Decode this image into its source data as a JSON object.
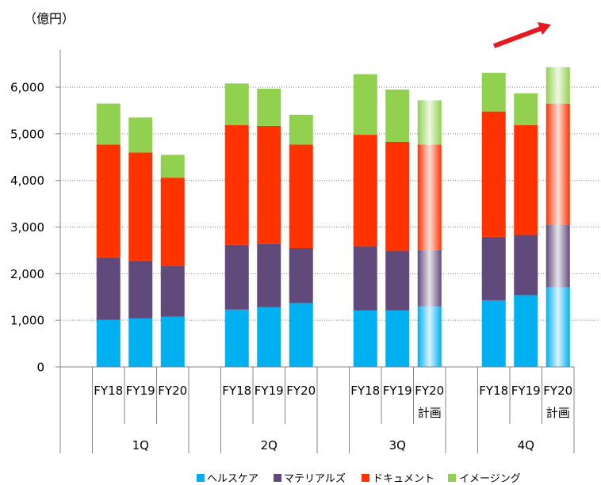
{
  "chart_data": {
    "type": "bar",
    "stacked": true,
    "ylabel": "（億円）",
    "ylim": [
      0,
      6800
    ],
    "yticks": [
      0,
      1000,
      2000,
      3000,
      4000,
      5000,
      6000
    ],
    "ytick_labels": [
      "0",
      "1,000",
      "2,000",
      "3,000",
      "4,000",
      "5,000",
      "6,000"
    ],
    "grid": true,
    "legend": "bottom",
    "groups": [
      {
        "label": "1Q",
        "categories": [
          {
            "label": "FY18"
          },
          {
            "label": "FY19"
          },
          {
            "label": "FY20"
          }
        ]
      },
      {
        "label": "2Q",
        "categories": [
          {
            "label": "FY18"
          },
          {
            "label": "FY19"
          },
          {
            "label": "FY20"
          }
        ]
      },
      {
        "label": "3Q",
        "categories": [
          {
            "label": "FY18"
          },
          {
            "label": "FY19"
          },
          {
            "label": "FY20",
            "note": "計画"
          }
        ]
      },
      {
        "label": "4Q",
        "categories": [
          {
            "label": "FY18"
          },
          {
            "label": "FY19"
          },
          {
            "label": "FY20",
            "note": "計画"
          }
        ]
      }
    ],
    "series": [
      {
        "name": "ヘルスケア",
        "color": "#00B0F0",
        "values": [
          1010,
          1040,
          1080,
          1230,
          1280,
          1370,
          1210,
          1210,
          1300,
          1430,
          1540,
          1710
        ]
      },
      {
        "name": "マテリアルズ",
        "color": "#604A7B",
        "values": [
          1340,
          1240,
          1090,
          1390,
          1360,
          1180,
          1380,
          1280,
          1200,
          1360,
          1290,
          1340
        ]
      },
      {
        "name": "ドキュメント",
        "color": "#FF3300",
        "values": [
          2420,
          2320,
          1890,
          2570,
          2530,
          2220,
          2390,
          2340,
          2270,
          2690,
          2360,
          2600
        ]
      },
      {
        "name": "イメージング",
        "color": "#92D050",
        "values": [
          880,
          750,
          490,
          890,
          800,
          640,
          1300,
          1120,
          950,
          830,
          680,
          780
        ]
      }
    ],
    "trend_arrow_color": "#E8191E"
  }
}
